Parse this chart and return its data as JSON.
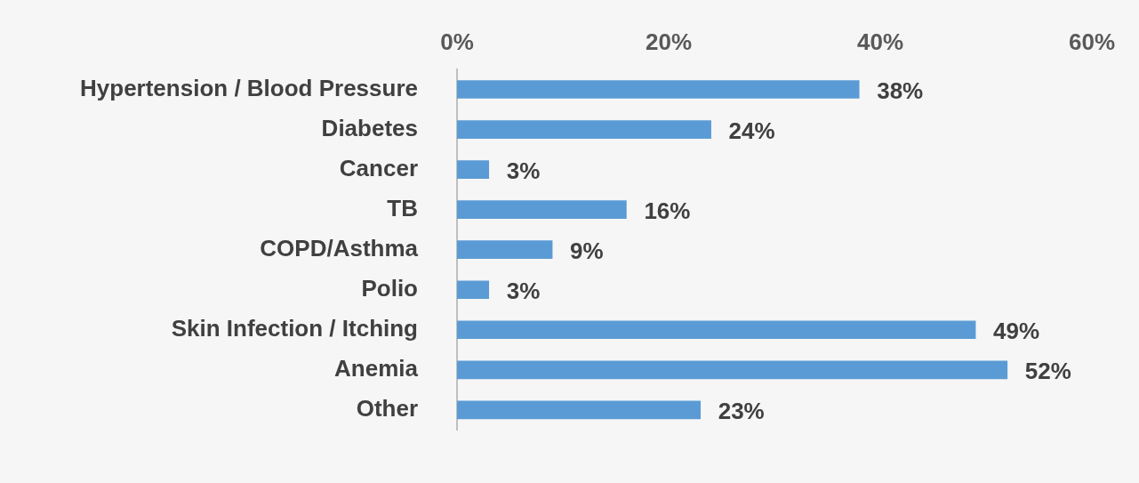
{
  "chart_data": {
    "type": "bar",
    "orientation": "horizontal",
    "categories": [
      "Hypertension / Blood Pressure",
      "Diabetes",
      "Cancer",
      "TB",
      "COPD/Asthma",
      "Polio",
      "Skin Infection / Itching",
      "Anemia",
      "Other"
    ],
    "values": [
      38,
      24,
      3,
      16,
      9,
      3,
      49,
      52,
      23
    ],
    "value_labels": [
      "38%",
      "24%",
      "3%",
      "16%",
      "9%",
      "3%",
      "49%",
      "52%",
      "23%"
    ],
    "color": "#5b9bd5",
    "xlim": [
      0,
      60
    ],
    "xticks": [
      {
        "value": 0,
        "label": "0%"
      },
      {
        "value": 20,
        "label": "20%"
      },
      {
        "value": 40,
        "label": "40%"
      },
      {
        "value": 60,
        "label": "60%"
      }
    ],
    "grid": false,
    "legend": false
  }
}
